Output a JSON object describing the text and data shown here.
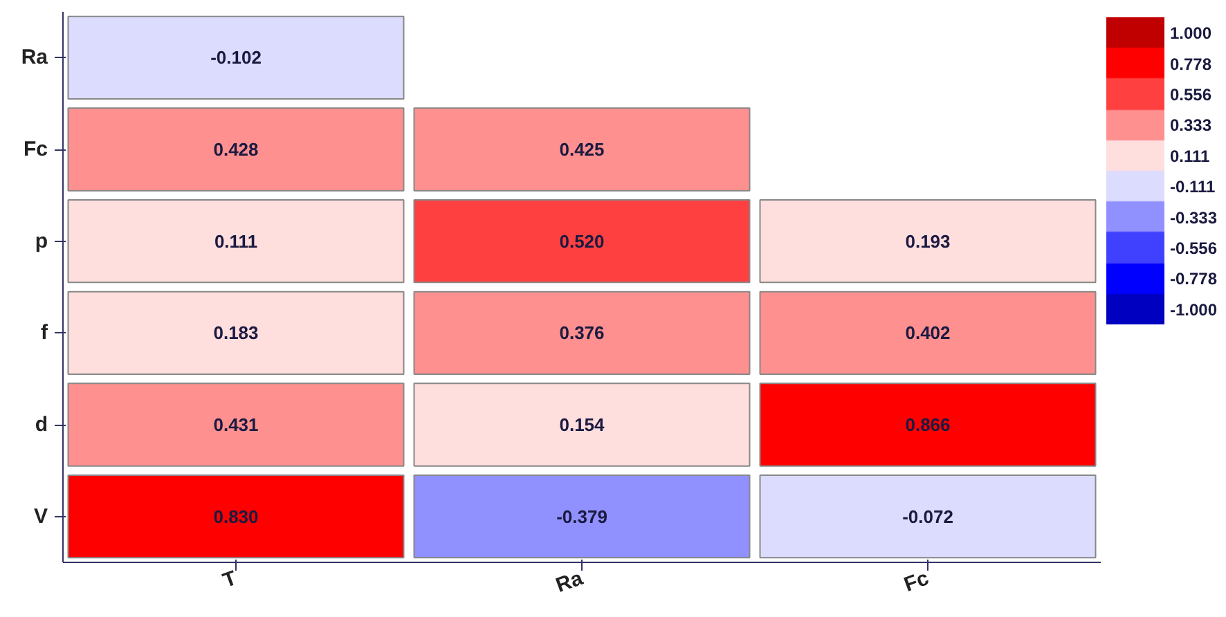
{
  "chart_data": {
    "type": "heatmap",
    "categories": [
      "T",
      "Ra",
      "Fc"
    ],
    "y_categories": [
      "Ra",
      "Fc",
      "p",
      "f",
      "d",
      "V"
    ],
    "cells": [
      [
        -0.102,
        null,
        null
      ],
      [
        0.428,
        0.425,
        null
      ],
      [
        0.111,
        0.52,
        0.193
      ],
      [
        0.183,
        0.376,
        0.402
      ],
      [
        0.431,
        0.154,
        0.866
      ],
      [
        0.83,
        -0.379,
        -0.072
      ]
    ],
    "data_labels": true,
    "cell_labels": [
      [
        "-0.102",
        null,
        null
      ],
      [
        "0.428",
        "0.425",
        null
      ],
      [
        "0.111",
        "0.520",
        "0.193"
      ],
      [
        "0.183",
        "0.376",
        "0.402"
      ],
      [
        "0.431",
        "0.154",
        "0.866"
      ],
      [
        "0.830",
        "-0.379",
        "-0.072"
      ]
    ],
    "clim": [
      -1,
      1
    ],
    "cticks": [
      {
        "value": 1,
        "label": "1.000"
      },
      {
        "value": 0.778,
        "label": "0.778"
      },
      {
        "value": 0.556,
        "label": "0.556"
      },
      {
        "value": 0.333,
        "label": "0.333"
      },
      {
        "value": 0.111,
        "label": "0.111"
      },
      {
        "value": -0.111,
        "label": "-0.111"
      },
      {
        "value": -0.333,
        "label": "-0.333"
      },
      {
        "value": -0.556,
        "label": "-0.556"
      },
      {
        "value": -0.778,
        "label": "-0.778"
      },
      {
        "value": -1,
        "label": "-1.000"
      }
    ],
    "colors": [
      "#c00000",
      "#ff0000",
      "#ff4040",
      "#ff9090",
      "#ffdede",
      "#dcdcff",
      "#9090ff",
      "#4040ff",
      "#0000ff",
      "#0000c0"
    ],
    "grid": false
  }
}
